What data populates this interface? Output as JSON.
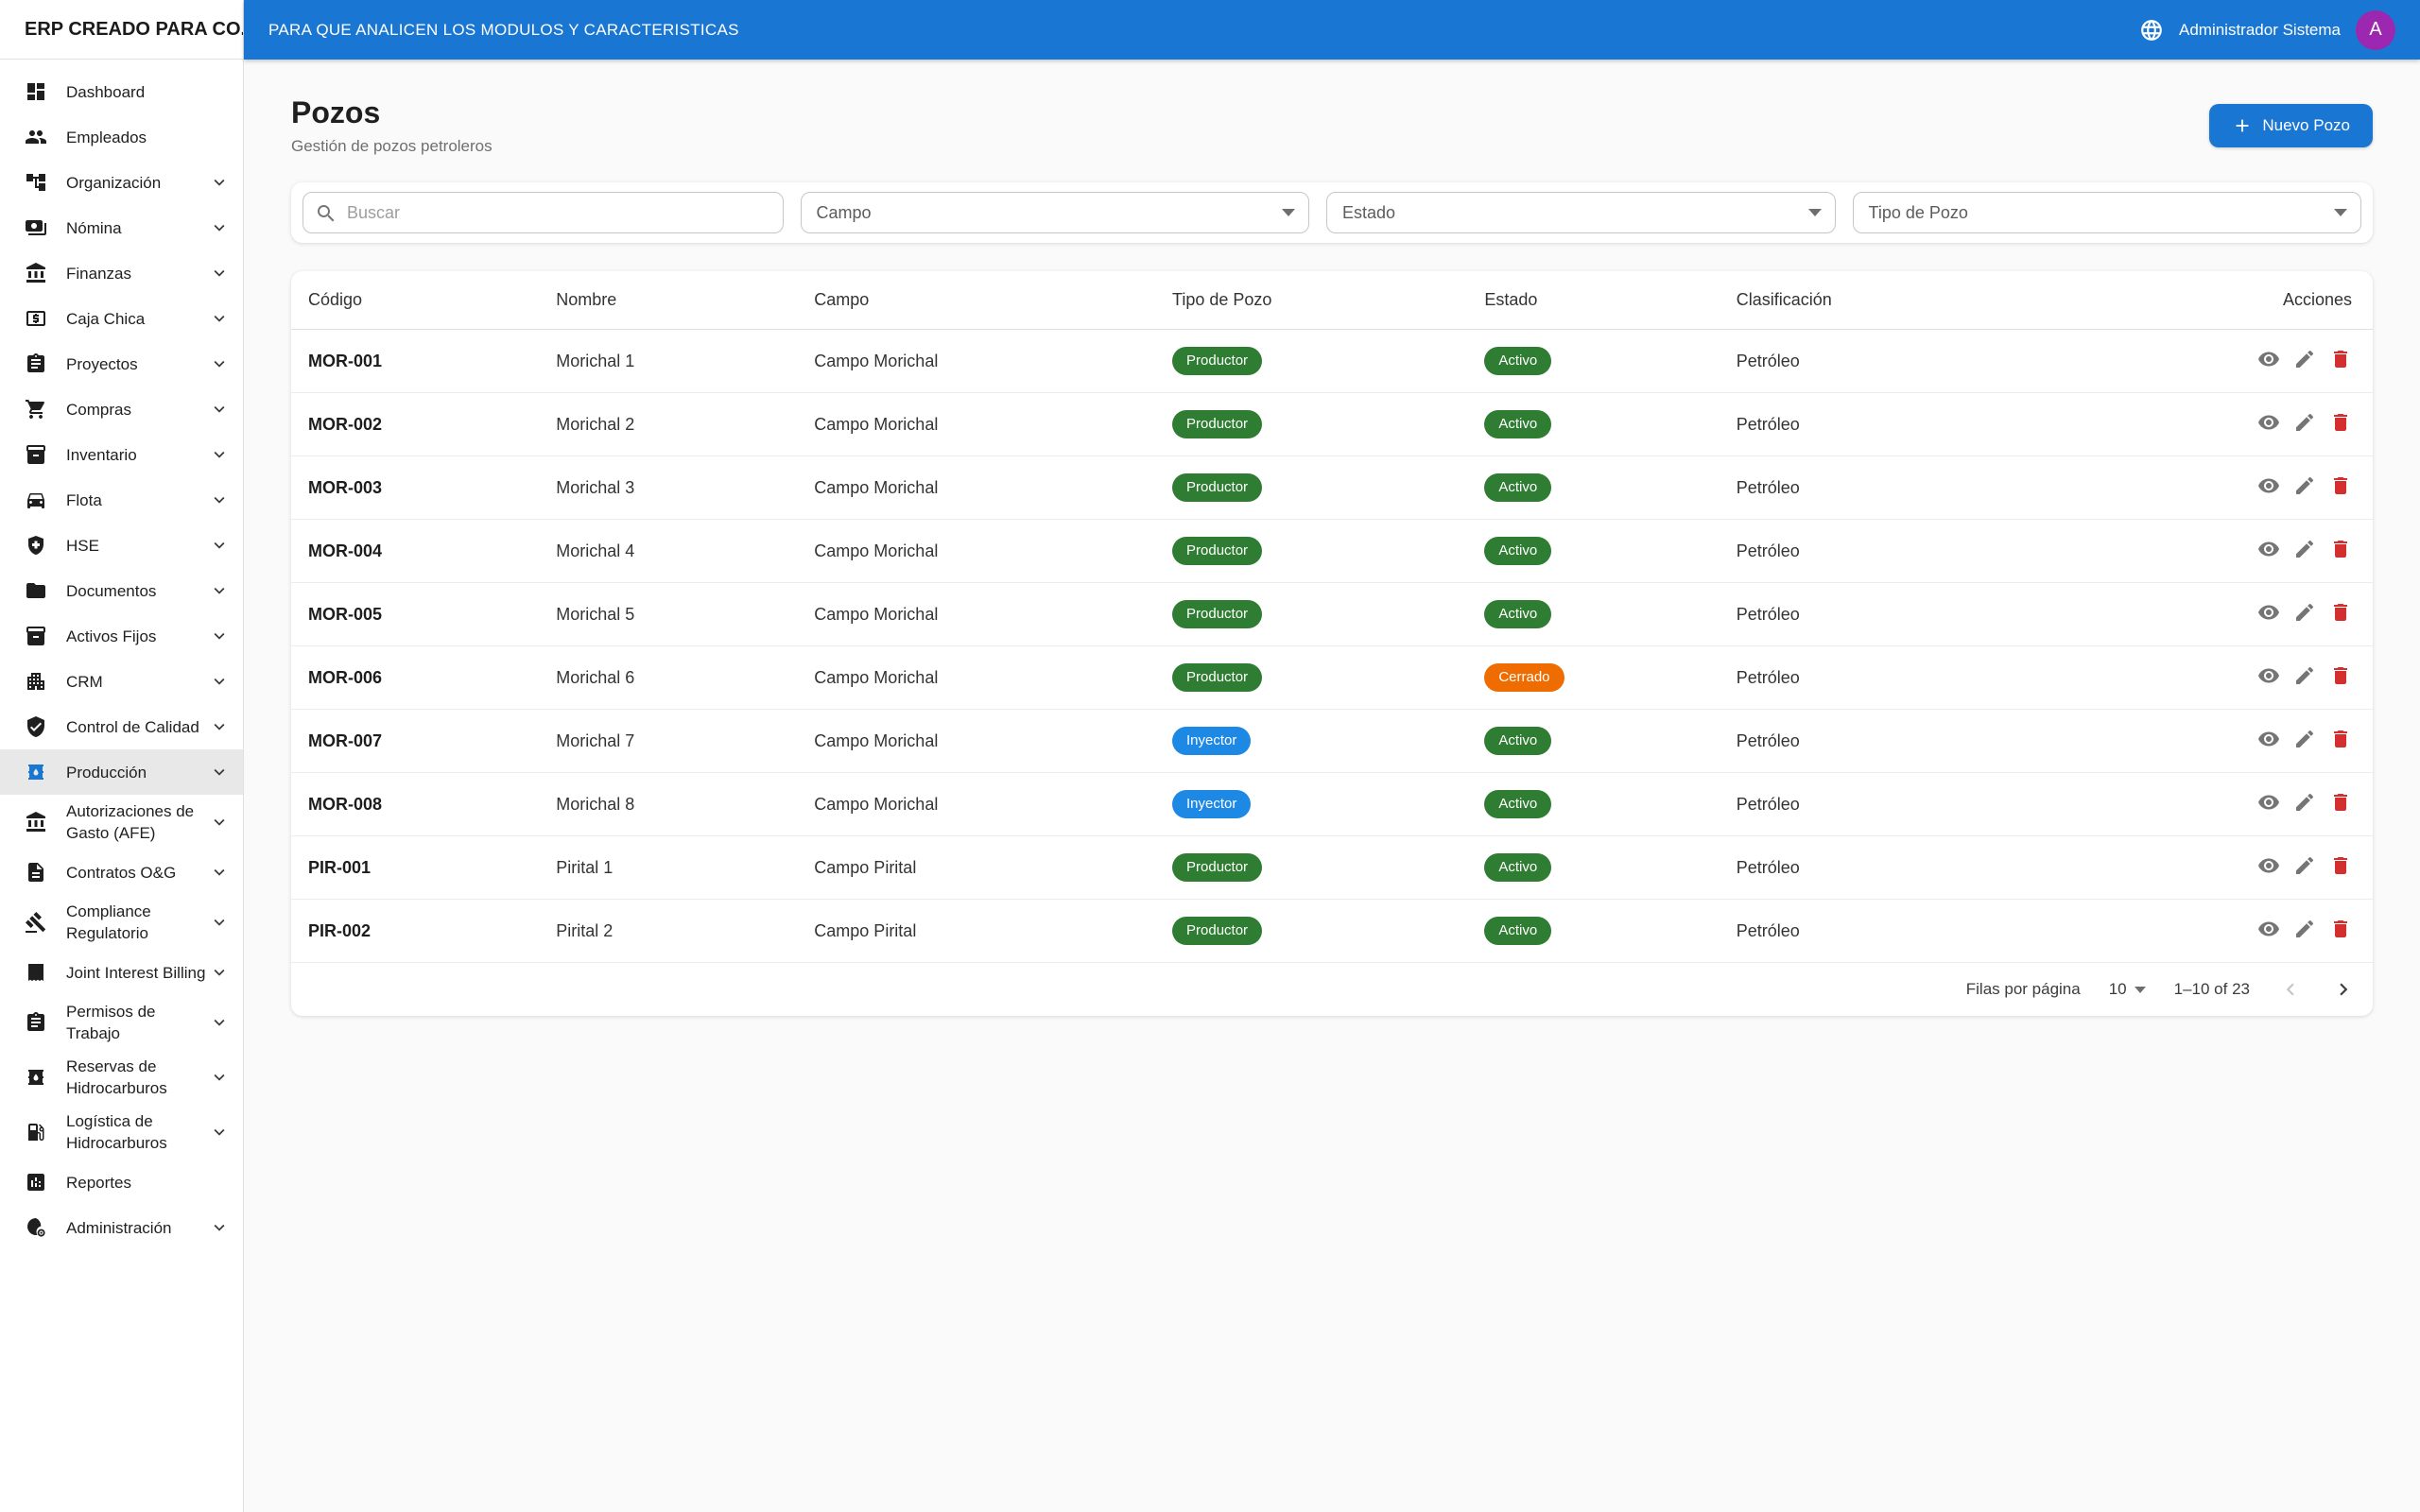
{
  "colors": {
    "primary": "#1976d2",
    "avatar_purple": "#9c27b0",
    "chip_green": "#2e7d32",
    "chip_blue": "#1e88e5",
    "chip_orange": "#ef6c00",
    "delete_red": "#d32f2f"
  },
  "sidebar": {
    "title": "ERP CREADO PARA CO...",
    "items": [
      {
        "id": "dashboard",
        "label": "Dashboard",
        "icon": "dashboard",
        "expandable": false,
        "active": false
      },
      {
        "id": "empleados",
        "label": "Empleados",
        "icon": "people",
        "expandable": false,
        "active": false
      },
      {
        "id": "organizacion",
        "label": "Organización",
        "icon": "tree",
        "expandable": true,
        "active": false
      },
      {
        "id": "nomina",
        "label": "Nómina",
        "icon": "payments",
        "expandable": true,
        "active": false
      },
      {
        "id": "finanzas",
        "label": "Finanzas",
        "icon": "bank",
        "expandable": true,
        "active": false
      },
      {
        "id": "caja-chica",
        "label": "Caja Chica",
        "icon": "atm",
        "expandable": true,
        "active": false
      },
      {
        "id": "proyectos",
        "label": "Proyectos",
        "icon": "clipboard",
        "expandable": true,
        "active": false
      },
      {
        "id": "compras",
        "label": "Compras",
        "icon": "cart",
        "expandable": true,
        "active": false
      },
      {
        "id": "inventario",
        "label": "Inventario",
        "icon": "inventory",
        "expandable": true,
        "active": false
      },
      {
        "id": "flota",
        "label": "Flota",
        "icon": "car",
        "expandable": true,
        "active": false
      },
      {
        "id": "hse",
        "label": "HSE",
        "icon": "health",
        "expandable": true,
        "active": false
      },
      {
        "id": "documentos",
        "label": "Documentos",
        "icon": "folder",
        "expandable": true,
        "active": false
      },
      {
        "id": "activos-fijos",
        "label": "Activos Fijos",
        "icon": "inventory",
        "expandable": true,
        "active": false
      },
      {
        "id": "crm",
        "label": "CRM",
        "icon": "building",
        "expandable": true,
        "active": false
      },
      {
        "id": "control-de-calidad",
        "label": "Control de Calidad",
        "icon": "shieldcheck",
        "expandable": true,
        "active": false
      },
      {
        "id": "produccion",
        "label": "Producción",
        "icon": "barrel",
        "expandable": true,
        "active": true
      },
      {
        "id": "afe",
        "label": "Autorizaciones de Gasto (AFE)",
        "icon": "bank",
        "expandable": true,
        "active": false
      },
      {
        "id": "contratos-og",
        "label": "Contratos O&G",
        "icon": "doc",
        "expandable": true,
        "active": false
      },
      {
        "id": "compliance",
        "label": "Compliance Regulatorio",
        "icon": "gavel",
        "expandable": true,
        "active": false
      },
      {
        "id": "jib",
        "label": "Joint Interest Billing",
        "icon": "receipt",
        "expandable": true,
        "active": false
      },
      {
        "id": "permisos-trabajo",
        "label": "Permisos de Trabajo",
        "icon": "clipboard",
        "expandable": true,
        "active": false
      },
      {
        "id": "reservas",
        "label": "Reservas de Hidrocarburos",
        "icon": "barrel",
        "expandable": true,
        "active": false
      },
      {
        "id": "logistica",
        "label": "Logística de Hidrocarburos",
        "icon": "pump",
        "expandable": true,
        "active": false
      },
      {
        "id": "reportes",
        "label": "Reportes",
        "icon": "analytics",
        "expandable": false,
        "active": false
      },
      {
        "id": "administracion",
        "label": "Administración",
        "icon": "admin",
        "expandable": true,
        "active": false
      }
    ]
  },
  "topbar": {
    "title": "PARA QUE ANALICEN LOS MODULOS Y CARACTERISTICAS",
    "user": "Administrador Sistema",
    "avatar_initial": "A"
  },
  "page": {
    "title": "Pozos",
    "subtitle": "Gestión de pozos petroleros",
    "new_button": "Nuevo Pozo"
  },
  "filters": {
    "search_placeholder": "Buscar",
    "selects": [
      "Campo",
      "Estado",
      "Tipo de Pozo"
    ]
  },
  "table": {
    "columns": [
      "Código",
      "Nombre",
      "Campo",
      "Tipo de Pozo",
      "Estado",
      "Clasificación",
      "Acciones"
    ],
    "rows": [
      {
        "codigo": "MOR-001",
        "nombre": "Morichal 1",
        "campo": "Campo Morichal",
        "tipo": "Productor",
        "tipo_color": "chip_green",
        "estado": "Activo",
        "estado_color": "chip_green",
        "clasificacion": "Petróleo"
      },
      {
        "codigo": "MOR-002",
        "nombre": "Morichal 2",
        "campo": "Campo Morichal",
        "tipo": "Productor",
        "tipo_color": "chip_green",
        "estado": "Activo",
        "estado_color": "chip_green",
        "clasificacion": "Petróleo"
      },
      {
        "codigo": "MOR-003",
        "nombre": "Morichal 3",
        "campo": "Campo Morichal",
        "tipo": "Productor",
        "tipo_color": "chip_green",
        "estado": "Activo",
        "estado_color": "chip_green",
        "clasificacion": "Petróleo"
      },
      {
        "codigo": "MOR-004",
        "nombre": "Morichal 4",
        "campo": "Campo Morichal",
        "tipo": "Productor",
        "tipo_color": "chip_green",
        "estado": "Activo",
        "estado_color": "chip_green",
        "clasificacion": "Petróleo"
      },
      {
        "codigo": "MOR-005",
        "nombre": "Morichal 5",
        "campo": "Campo Morichal",
        "tipo": "Productor",
        "tipo_color": "chip_green",
        "estado": "Activo",
        "estado_color": "chip_green",
        "clasificacion": "Petróleo"
      },
      {
        "codigo": "MOR-006",
        "nombre": "Morichal 6",
        "campo": "Campo Morichal",
        "tipo": "Productor",
        "tipo_color": "chip_green",
        "estado": "Cerrado",
        "estado_color": "chip_orange",
        "clasificacion": "Petróleo"
      },
      {
        "codigo": "MOR-007",
        "nombre": "Morichal 7",
        "campo": "Campo Morichal",
        "tipo": "Inyector",
        "tipo_color": "chip_blue",
        "estado": "Activo",
        "estado_color": "chip_green",
        "clasificacion": "Petróleo"
      },
      {
        "codigo": "MOR-008",
        "nombre": "Morichal 8",
        "campo": "Campo Morichal",
        "tipo": "Inyector",
        "tipo_color": "chip_blue",
        "estado": "Activo",
        "estado_color": "chip_green",
        "clasificacion": "Petróleo"
      },
      {
        "codigo": "PIR-001",
        "nombre": "Pirital 1",
        "campo": "Campo Pirital",
        "tipo": "Productor",
        "tipo_color": "chip_green",
        "estado": "Activo",
        "estado_color": "chip_green",
        "clasificacion": "Petróleo"
      },
      {
        "codigo": "PIR-002",
        "nombre": "Pirital 2",
        "campo": "Campo Pirital",
        "tipo": "Productor",
        "tipo_color": "chip_green",
        "estado": "Activo",
        "estado_color": "chip_green",
        "clasificacion": "Petróleo"
      }
    ]
  },
  "pagination": {
    "rows_per_page_label": "Filas por página",
    "rows_per_page": "10",
    "range": "1–10 of 23"
  }
}
